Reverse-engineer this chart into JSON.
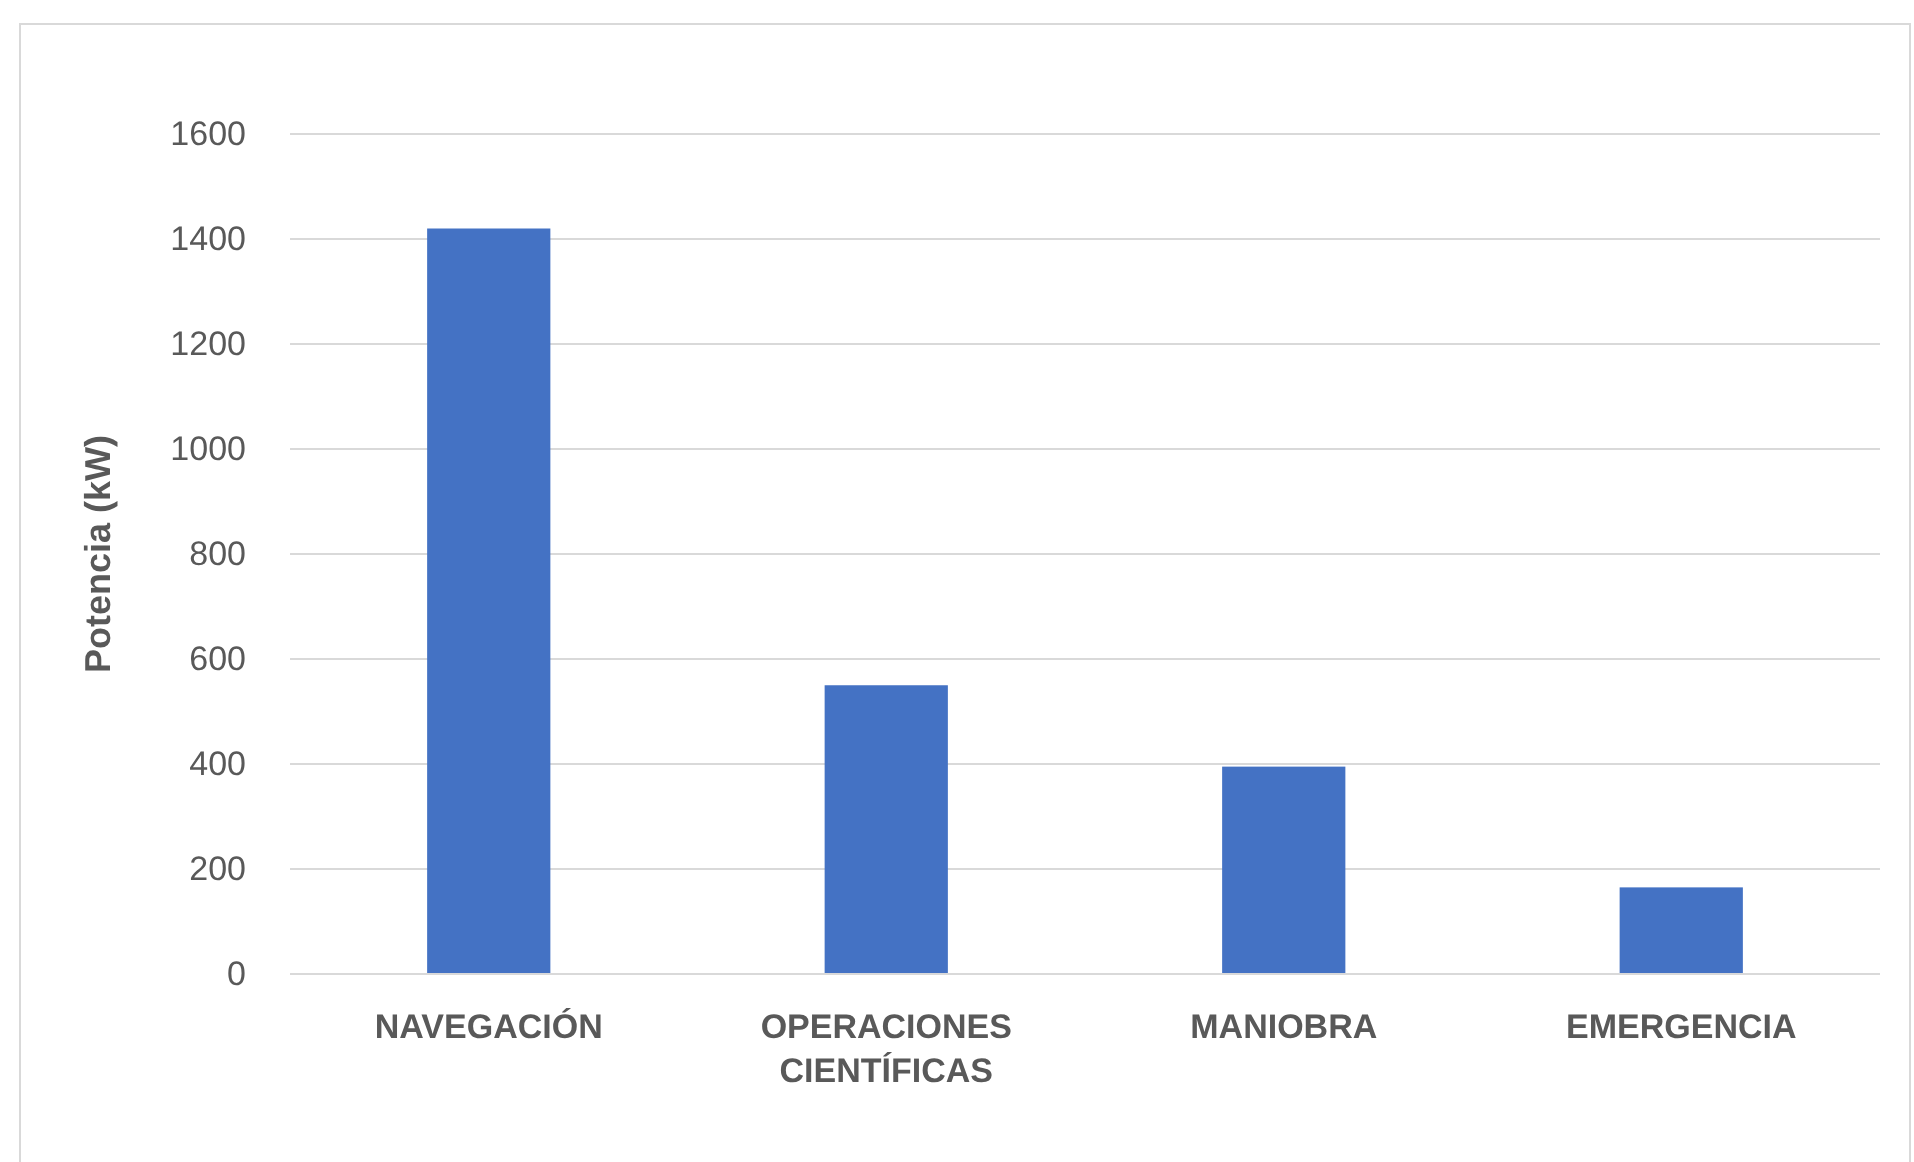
{
  "chart_data": {
    "type": "bar",
    "ylabel": "Potencia (kW)",
    "categories": [
      "NAVEGACIÓN",
      "OPERACIONES CIENTÍFICAS",
      "MANIOBRA",
      "EMERGENCIA"
    ],
    "values": [
      1420,
      550,
      395,
      165
    ],
    "color": "#4472c4",
    "ylim": [
      0,
      1600
    ],
    "yticks": [
      0,
      200,
      400,
      600,
      800,
      1000,
      1200,
      1400,
      1600
    ],
    "grid": "y"
  }
}
